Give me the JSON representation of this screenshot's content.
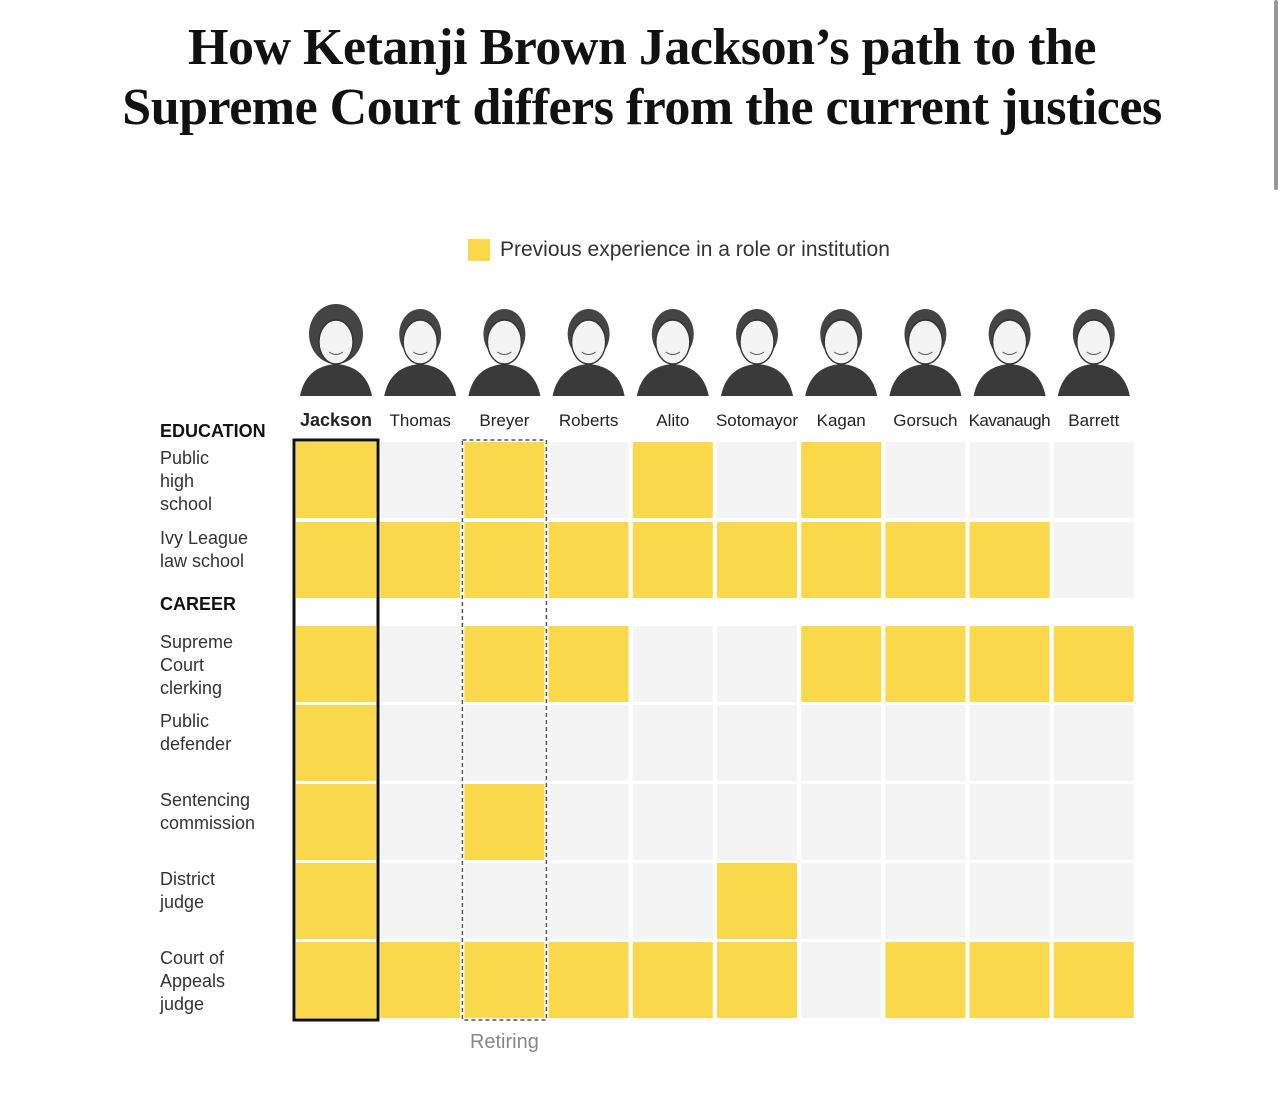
{
  "title": {
    "line1": "How Ketanji Brown Jackson’s path to the",
    "line2": "Supreme Court differs from the current justices"
  },
  "legend": {
    "label": "Previous experience in a role or institution"
  },
  "colors": {
    "filled": "#f9d84b",
    "empty": "#f4f4f4",
    "highlight_border": "#111111",
    "retiring_border": "#555555",
    "retiring_text": "#888888"
  },
  "chart_data": {
    "type": "table",
    "justices": [
      "Jackson",
      "Thomas",
      "Breyer",
      "Roberts",
      "Alito",
      "Sotomayor",
      "Kagan",
      "Gorsuch",
      "Kavanaugh",
      "Barrett"
    ],
    "highlighted": "Jackson",
    "retiring": "Breyer",
    "retiring_label": "Retiring",
    "sections": [
      {
        "name": "EDUCATION",
        "rows": [
          {
            "label": "Public high school",
            "values": [
              1,
              0,
              1,
              0,
              1,
              0,
              1,
              0,
              0,
              0
            ]
          },
          {
            "label": "Ivy League law school",
            "values": [
              1,
              1,
              1,
              1,
              1,
              1,
              1,
              1,
              1,
              0
            ]
          }
        ]
      },
      {
        "name": "CAREER",
        "rows": [
          {
            "label": "Supreme Court clerking",
            "values": [
              1,
              0,
              1,
              1,
              0,
              0,
              1,
              1,
              1,
              1
            ]
          },
          {
            "label": "Public defender",
            "values": [
              1,
              0,
              0,
              0,
              0,
              0,
              0,
              0,
              0,
              0
            ]
          },
          {
            "label": "Sentencing commission",
            "values": [
              1,
              0,
              1,
              0,
              0,
              0,
              0,
              0,
              0,
              0
            ]
          },
          {
            "label": "District judge",
            "values": [
              1,
              0,
              0,
              0,
              0,
              1,
              0,
              0,
              0,
              0
            ]
          },
          {
            "label": "Court of Appeals judge",
            "values": [
              1,
              1,
              1,
              1,
              1,
              1,
              0,
              1,
              1,
              1
            ]
          }
        ]
      }
    ]
  }
}
